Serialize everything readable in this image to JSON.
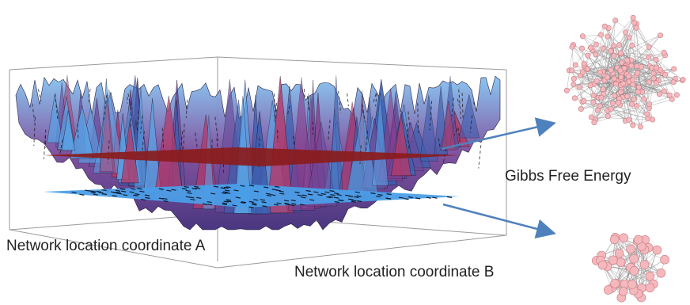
{
  "labels": {
    "axis_a": "Network location coordinate A",
    "axis_b": "Network location coordinate B",
    "energy": "Gibbs Free Energy"
  },
  "colors": {
    "box_line": "#9a9a9a",
    "surface_top_blue": "#5aa3e6",
    "surface_mid_purple": "#6a4c9c",
    "surface_deep_magenta": "#b43a6a",
    "red_plane": "#8a1c1c",
    "blue_plane": "#4a9ee8",
    "arrow": "#4f81bd",
    "node_fill": "#f5b8bd",
    "node_stroke": "#c77c84",
    "edge": "#8a8a8a"
  },
  "networks": {
    "top": {
      "description_icon": "dense-graph-icon",
      "node_count": 160
    },
    "bottom": {
      "description_icon": "compact-graph-icon",
      "node_count": 40
    }
  }
}
